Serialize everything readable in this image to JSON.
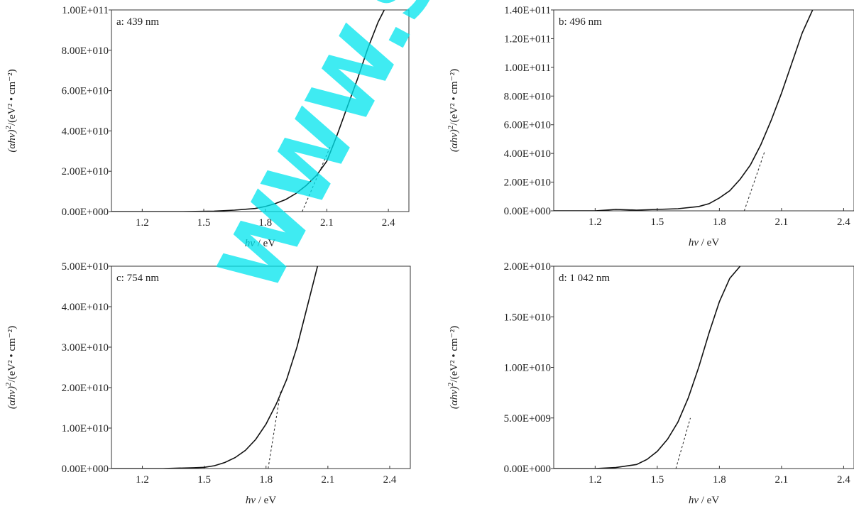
{
  "watermark": "WWW.SP",
  "chart_data": [
    {
      "type": "line",
      "panel_label": "a: 439 nm",
      "xlabel_italic": "hv",
      "xlabel_unit": " / eV",
      "ylabel_main": "(αhv)",
      "ylabel_unit": "/(eV² • cm⁻²)",
      "xlim": [
        1.05,
        2.5
      ],
      "ylim": [
        0,
        100000000000
      ],
      "xticks": [
        1.2,
        1.5,
        1.8,
        2.1,
        2.4
      ],
      "xtick_labels": [
        "1.2",
        "1.5",
        "1.8",
        "2.1",
        "2.4"
      ],
      "yticks": [
        0,
        20000000000,
        40000000000,
        60000000000,
        80000000000,
        100000000000
      ],
      "ytick_labels": [
        "0.00E+000",
        "2.00E+010",
        "4.00E+010",
        "6.00E+010",
        "8.00E+010",
        "1.00E+011"
      ],
      "series": [
        {
          "style": "solid",
          "x": [
            1.05,
            1.2,
            1.4,
            1.55,
            1.65,
            1.75,
            1.8,
            1.85,
            1.9,
            1.95,
            2.0,
            2.05,
            2.1,
            2.15,
            2.2,
            2.25,
            2.3,
            2.35,
            2.38
          ],
          "y": [
            0,
            0,
            0,
            200000000,
            700000000,
            1500000000,
            2500000000,
            4000000000,
            6000000000,
            9000000000,
            13000000000,
            18000000000,
            25000000000,
            38000000000,
            52000000000,
            66000000000,
            81000000000,
            94000000000,
            100000000000
          ]
        },
        {
          "style": "dashed",
          "x": [
            1.98,
            2.12
          ],
          "y": [
            0,
            33000000000
          ]
        }
      ]
    },
    {
      "type": "line",
      "panel_label": "b: 496 nm",
      "xlabel_italic": "hv",
      "xlabel_unit": " / eV",
      "ylabel_main": "(αhv)",
      "ylabel_unit": "/(eV² • cm⁻²)",
      "xlim": [
        1.0,
        2.45
      ],
      "ylim": [
        0,
        140000000000
      ],
      "xticks": [
        1.2,
        1.5,
        1.8,
        2.1,
        2.4
      ],
      "xtick_labels": [
        "1.2",
        "1.5",
        "1.8",
        "2.1",
        "2.4"
      ],
      "yticks": [
        0,
        20000000000,
        40000000000,
        60000000000,
        80000000000,
        100000000000,
        120000000000,
        140000000000
      ],
      "ytick_labels": [
        "0.00E+000",
        "2.00E+010",
        "4.00E+010",
        "6.00E+010",
        "8.00E+010",
        "1.00E+011",
        "1.20E+011",
        "1.40E+011"
      ],
      "series": [
        {
          "style": "solid",
          "x": [
            1.0,
            1.2,
            1.3,
            1.4,
            1.5,
            1.6,
            1.7,
            1.75,
            1.8,
            1.85,
            1.9,
            1.95,
            2.0,
            2.05,
            2.1,
            2.15,
            2.2,
            2.25
          ],
          "y": [
            0,
            0,
            1000000000,
            500000000,
            1000000000,
            1500000000,
            3000000000,
            5000000000,
            9000000000,
            14000000000,
            22000000000,
            32000000000,
            46000000000,
            63000000000,
            82000000000,
            103000000000,
            124000000000,
            140000000000
          ]
        },
        {
          "style": "dashed",
          "x": [
            1.92,
            2.02
          ],
          "y": [
            0,
            42000000000
          ]
        }
      ]
    },
    {
      "type": "line",
      "panel_label": "c: 754 nm",
      "xlabel_italic": "hv",
      "xlabel_unit": " / eV",
      "ylabel_main": "(αhv)",
      "ylabel_unit": "/(eV² • cm⁻²)",
      "xlim": [
        1.05,
        2.5
      ],
      "ylim": [
        0,
        50000000000
      ],
      "xticks": [
        1.2,
        1.5,
        1.8,
        2.1,
        2.4
      ],
      "xtick_labels": [
        "1.2",
        "1.5",
        "1.8",
        "2.1",
        "2.4"
      ],
      "yticks": [
        0,
        10000000000,
        20000000000,
        30000000000,
        40000000000,
        50000000000
      ],
      "ytick_labels": [
        "0.00E+000",
        "1.00E+010",
        "2.00E+010",
        "3.00E+010",
        "4.00E+010",
        "5.00E+010"
      ],
      "series": [
        {
          "style": "solid",
          "x": [
            1.05,
            1.3,
            1.45,
            1.5,
            1.55,
            1.6,
            1.65,
            1.7,
            1.75,
            1.8,
            1.85,
            1.9,
            1.95,
            2.0,
            2.03,
            2.05
          ],
          "y": [
            0,
            0,
            200000000,
            300000000,
            700000000,
            1500000000,
            2700000000,
            4500000000,
            7200000000,
            11000000000,
            16000000000,
            22000000000,
            30000000000,
            40000000000,
            46000000000,
            50000000000
          ]
        },
        {
          "style": "dashed",
          "x": [
            1.81,
            1.87
          ],
          "y": [
            0,
            19000000000
          ]
        }
      ]
    },
    {
      "type": "line",
      "panel_label": "d: 1 042 nm",
      "xlabel_italic": "hv",
      "xlabel_unit": " / eV",
      "ylabel_main": "(αhv)",
      "ylabel_unit": "/(eV² • cm⁻²)",
      "xlim": [
        1.0,
        2.45
      ],
      "ylim": [
        0,
        20000000000
      ],
      "xticks": [
        1.2,
        1.5,
        1.8,
        2.1,
        2.4
      ],
      "xtick_labels": [
        "1.2",
        "1.5",
        "1.8",
        "2.1",
        "2.4"
      ],
      "yticks": [
        0,
        5000000000,
        10000000000,
        15000000000,
        20000000000
      ],
      "ytick_labels": [
        "0.00E+000",
        "5.00E+009",
        "1.00E+010",
        "1.50E+010",
        "2.00E+010"
      ],
      "series": [
        {
          "style": "solid",
          "x": [
            1.0,
            1.2,
            1.3,
            1.4,
            1.45,
            1.5,
            1.55,
            1.6,
            1.65,
            1.7,
            1.75,
            1.8,
            1.85,
            1.9
          ],
          "y": [
            0,
            0,
            100000000,
            400000000,
            900000000,
            1700000000,
            2900000000,
            4600000000,
            7000000000,
            10000000000,
            13400000000,
            16500000000,
            18800000000,
            20000000000
          ]
        },
        {
          "style": "dashed",
          "x": [
            1.59,
            1.66
          ],
          "y": [
            0,
            5000000000
          ]
        }
      ]
    }
  ]
}
